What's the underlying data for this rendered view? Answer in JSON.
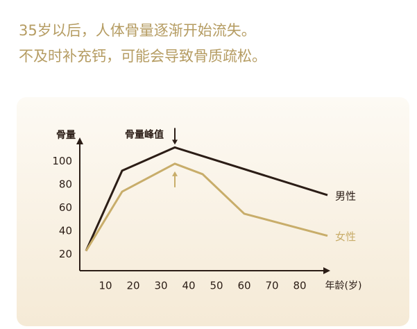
{
  "chart_data": {
    "type": "line",
    "title": "35岁以后，人体骨量逐渐开始流失。",
    "subtitle": "不及时补充钙，可能会导致骨质疏松。",
    "y_label": "骨量",
    "x_label": "年龄(岁)",
    "annotation": "骨量峰值",
    "x": [
      3,
      16,
      35,
      45,
      60,
      90
    ],
    "series": [
      {
        "name": "男性",
        "color": "#2b1d16",
        "values": [
          23,
          92,
          112,
          null,
          null,
          71
        ]
      },
      {
        "name": "女性",
        "color": "#c8ad6a",
        "values": [
          23,
          74,
          98,
          89,
          55,
          36
        ]
      }
    ],
    "xlim": [
      0,
      90
    ],
    "ylim": [
      6,
      120
    ],
    "xticks": [
      10,
      20,
      30,
      40,
      50,
      60,
      70,
      80
    ],
    "yticks": [
      20,
      40,
      60,
      80,
      100
    ],
    "grid": false
  }
}
